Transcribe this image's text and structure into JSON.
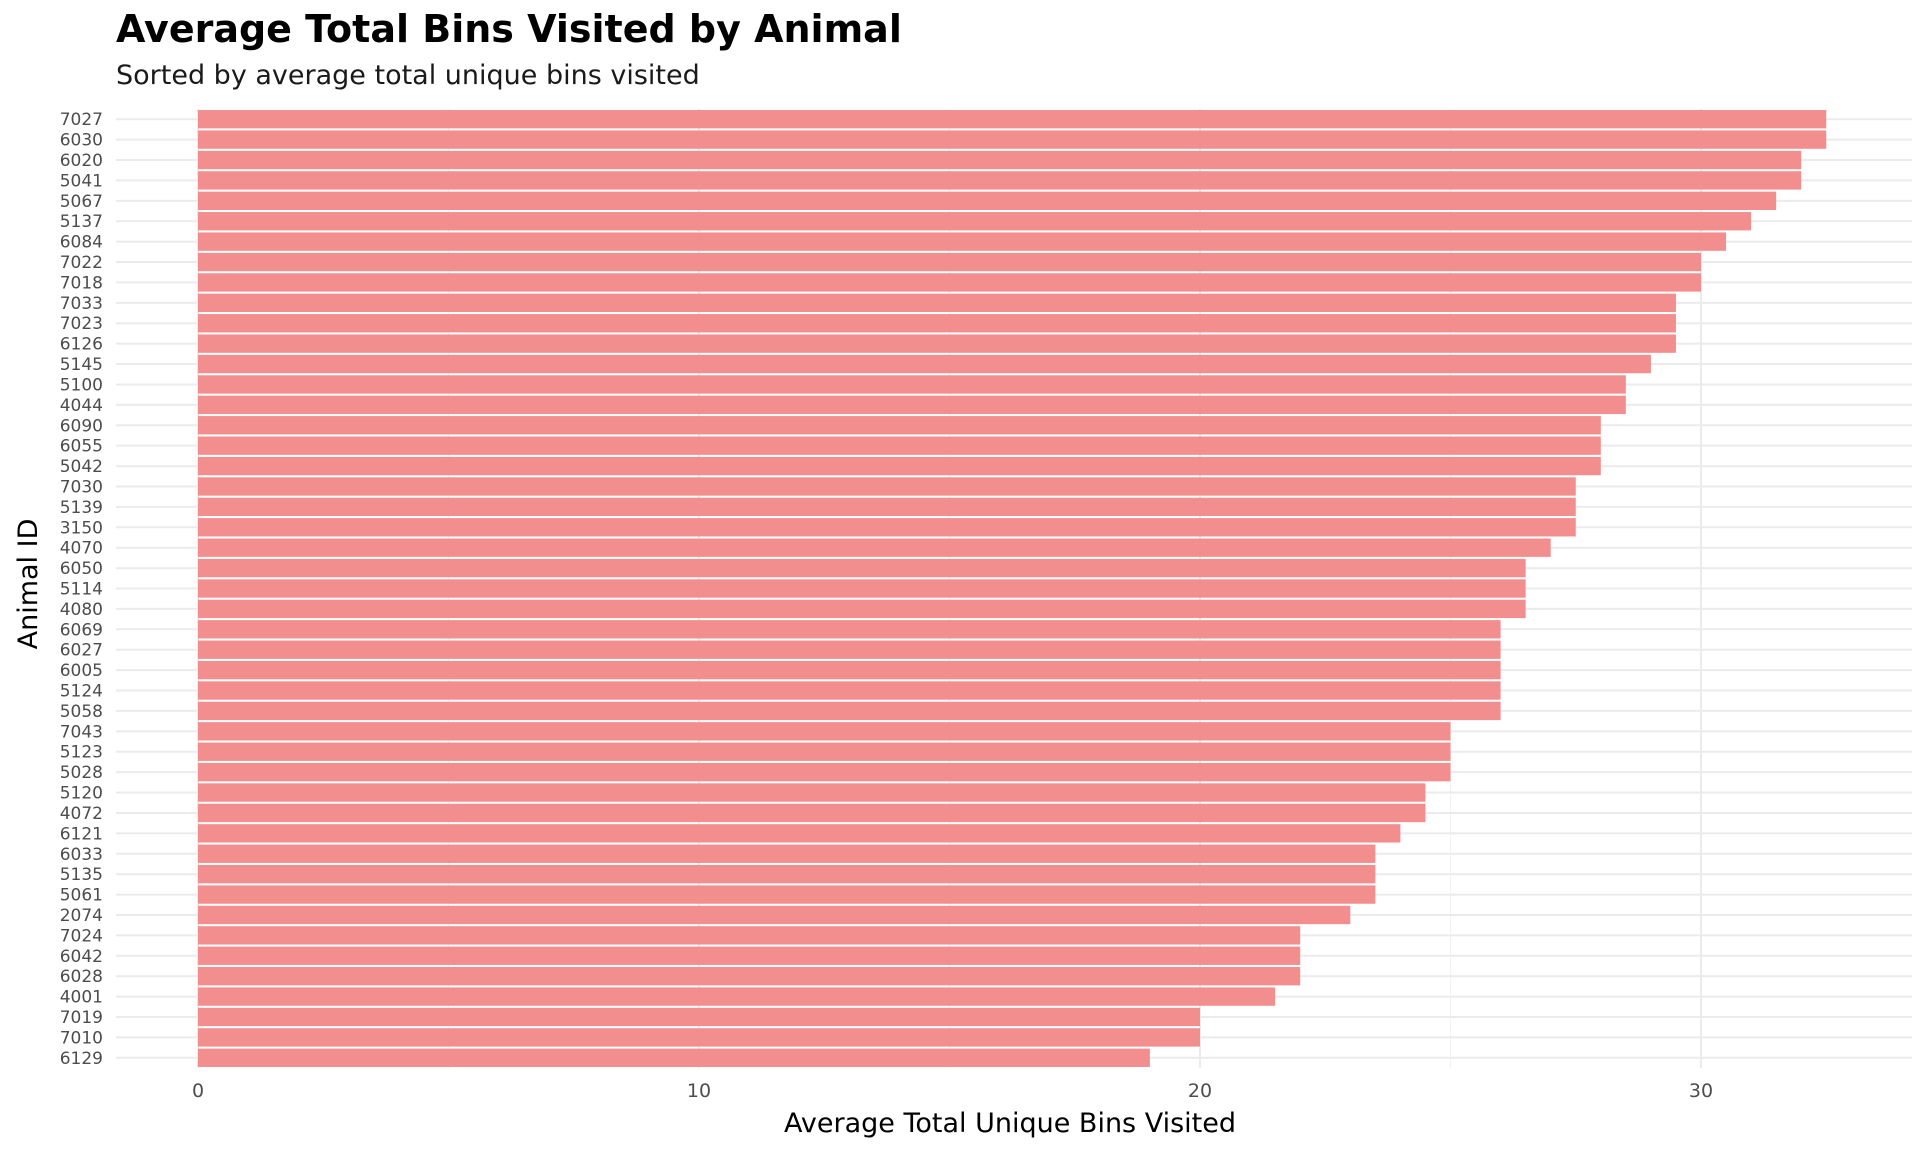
{
  "chart_data": {
    "type": "bar",
    "orientation": "horizontal",
    "title": "Average Total Bins Visited by Animal",
    "subtitle": "Sorted by average total unique bins visited",
    "xlabel": "Average Total Unique Bins Visited",
    "ylabel": "Animal ID",
    "xlim": [
      0,
      34
    ],
    "xticks": [
      0,
      10,
      20,
      30
    ],
    "grid": true,
    "legend": "none",
    "bar_color": "#f28e8e",
    "categories": [
      "7027",
      "6030",
      "6020",
      "5041",
      "5067",
      "5137",
      "6084",
      "7022",
      "7018",
      "7033",
      "7023",
      "6126",
      "5145",
      "5100",
      "4044",
      "6090",
      "6055",
      "5042",
      "7030",
      "5139",
      "3150",
      "4070",
      "6050",
      "5114",
      "4080",
      "6069",
      "6027",
      "6005",
      "5124",
      "5058",
      "7043",
      "5123",
      "5028",
      "5120",
      "4072",
      "6121",
      "6033",
      "5135",
      "5061",
      "2074",
      "7024",
      "6042",
      "6028",
      "4001",
      "7019",
      "7010",
      "6129"
    ],
    "values": [
      32.5,
      32.5,
      32.0,
      32.0,
      31.5,
      31.0,
      30.5,
      30.0,
      30.0,
      29.5,
      29.5,
      29.5,
      29.0,
      28.5,
      28.5,
      28.0,
      28.0,
      28.0,
      27.5,
      27.5,
      27.5,
      27.0,
      26.5,
      26.5,
      26.5,
      26.0,
      26.0,
      26.0,
      26.0,
      26.0,
      25.0,
      25.0,
      25.0,
      24.5,
      24.5,
      24.0,
      23.5,
      23.5,
      23.5,
      23.0,
      22.0,
      22.0,
      22.0,
      21.5,
      20.0,
      20.0,
      19.0
    ]
  }
}
